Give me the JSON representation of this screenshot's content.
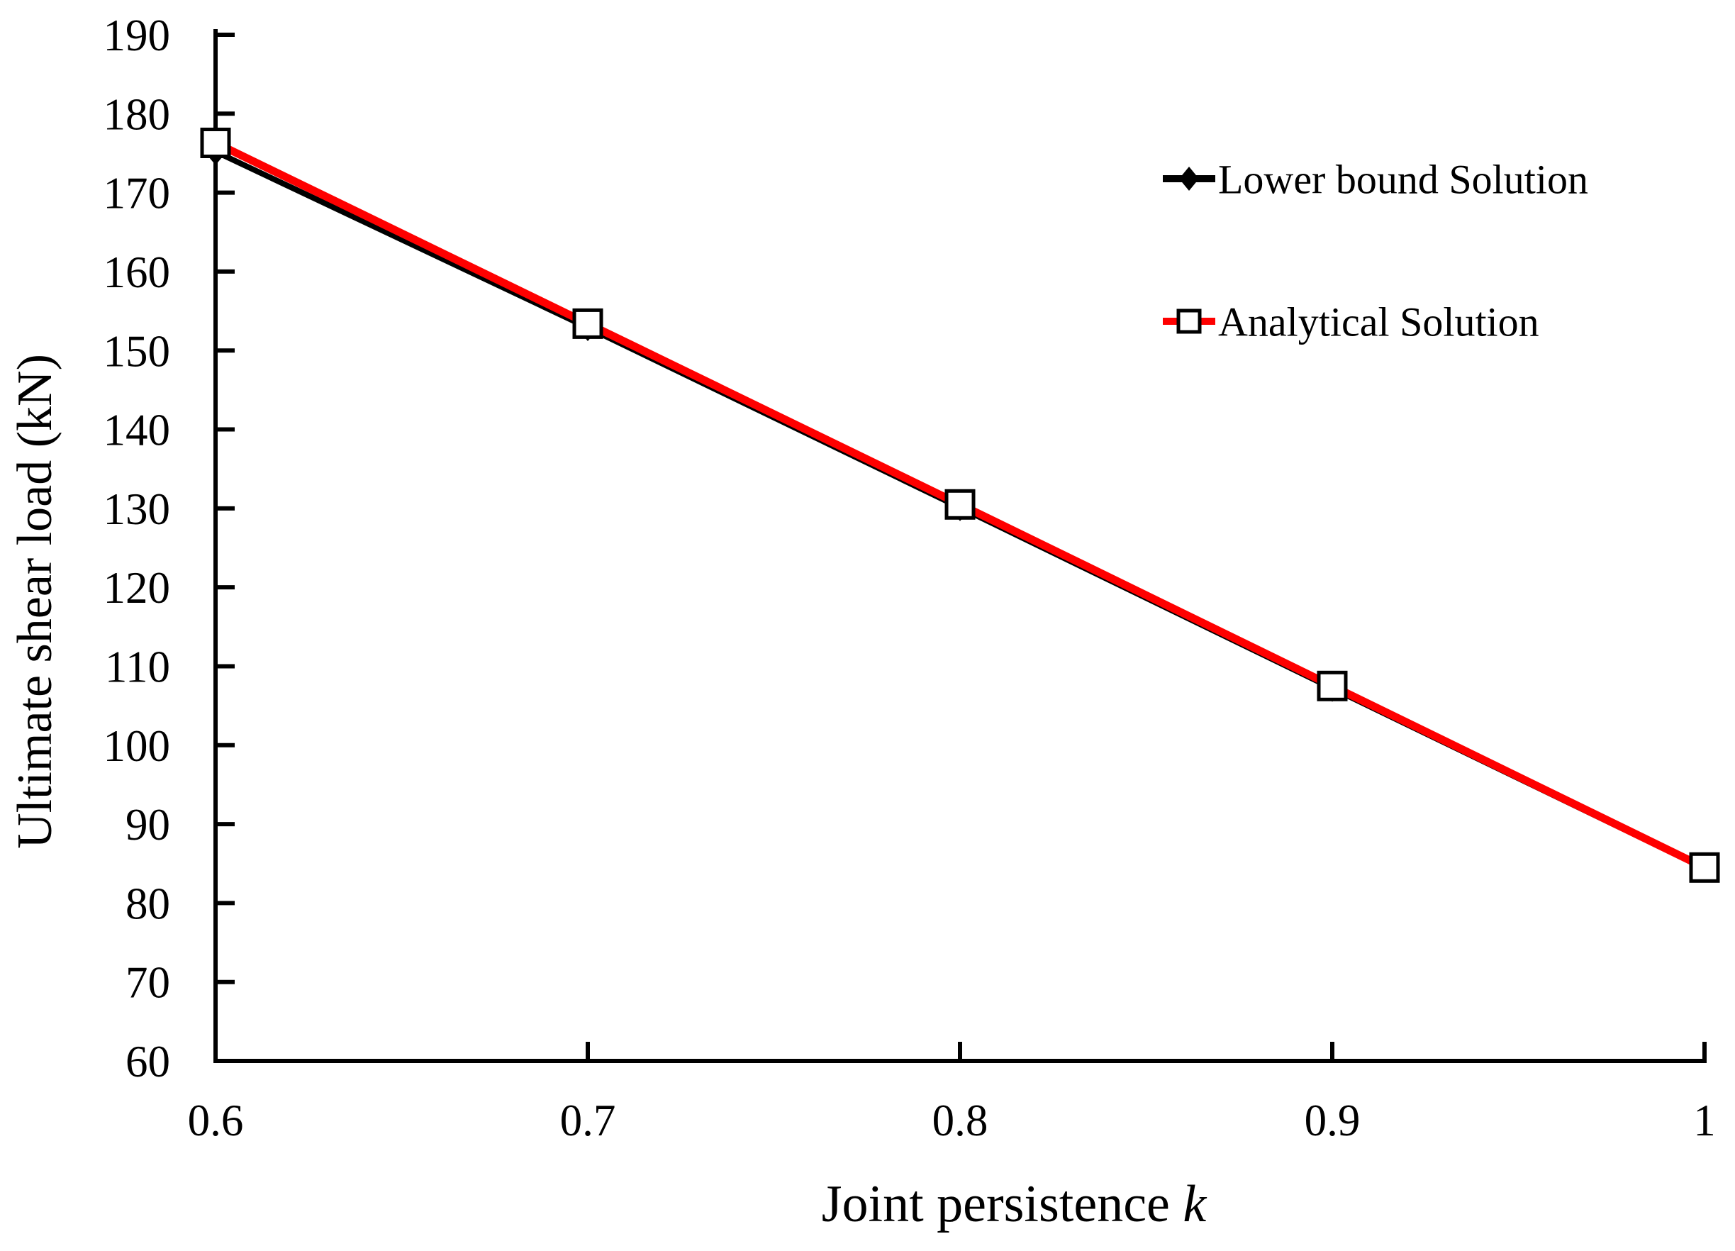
{
  "figure": {
    "background": "#ffffff",
    "text_color": "#000000",
    "axis_color": "#000000"
  },
  "chart_data": {
    "type": "line",
    "title": "",
    "xlabel": "Joint persistence k",
    "xlabel_main": "Joint persistence ",
    "xlabel_var": "k",
    "ylabel": "Ultimate shear load (kN)",
    "xlim": [
      0.6,
      1.0
    ],
    "ylim": [
      60,
      190
    ],
    "grid": false,
    "legend": {
      "position": "upper-right-inside",
      "border": "none"
    },
    "x": [
      0.6,
      0.7,
      0.8,
      0.9,
      1.0
    ],
    "xtick_labels": [
      "0.6",
      "0.7",
      "0.8",
      "0.9",
      "1"
    ],
    "yticks": [
      190,
      180,
      170,
      160,
      150,
      140,
      130,
      120,
      110,
      100,
      90,
      80,
      70,
      60
    ],
    "series": [
      {
        "name": "Lower bound Solution",
        "color": "#000000",
        "marker": "filled-diamond",
        "marker_color": "#000000",
        "values": [
          175.2,
          152.9,
          130.1,
          107.2,
          84.4
        ]
      },
      {
        "name": "Analytical Solution",
        "color": "#fe0000",
        "marker": "open-square",
        "marker_fill": "#ffffff",
        "marker_border": "#000000",
        "values": [
          176.3,
          153.4,
          130.5,
          107.5,
          84.5
        ]
      }
    ]
  }
}
